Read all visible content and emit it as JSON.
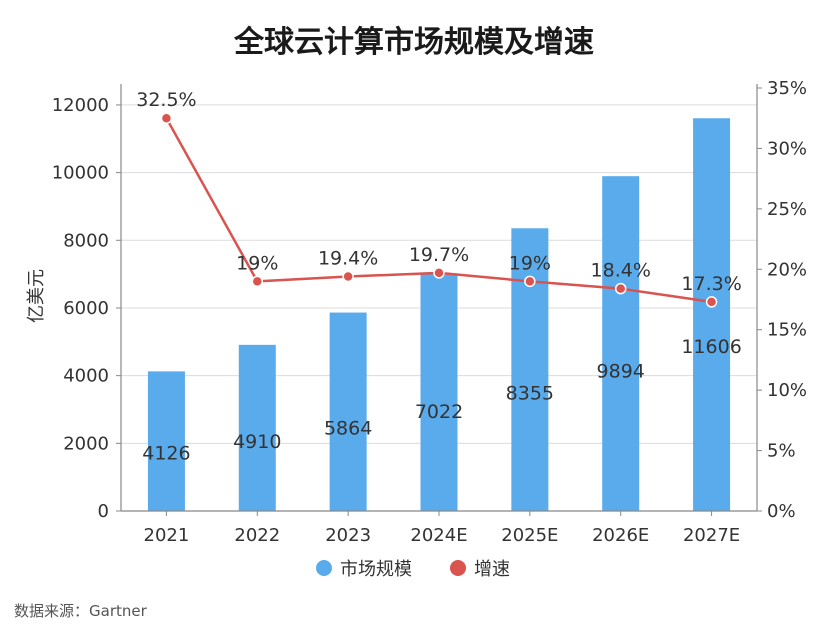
{
  "chart_data": {
    "type": "bar",
    "title": "全球云计算市场规模及增速",
    "categories": [
      "2021",
      "2022",
      "2023",
      "2024E",
      "2025E",
      "2026E",
      "2027E"
    ],
    "ylabel": "亿美元",
    "ylim": [
      0,
      12500
    ],
    "y_ticks": [
      0,
      2000,
      4000,
      6000,
      8000,
      10000,
      12000
    ],
    "y2lim": [
      0,
      35
    ],
    "y2_ticks": [
      "0%",
      "5%",
      "10%",
      "15%",
      "20%",
      "25%",
      "30%",
      "35%"
    ],
    "grid": true,
    "legend_position": "bottom",
    "series": [
      {
        "name": "市场规模",
        "type": "bar",
        "axis": "left",
        "color": "#5aabec",
        "values": [
          4126,
          4910,
          5864,
          7022,
          8355,
          9894,
          11606
        ],
        "labels": [
          "4126",
          "4910",
          "5864",
          "7022",
          "8355",
          "9894",
          "11606"
        ]
      },
      {
        "name": "增速",
        "type": "line",
        "axis": "right",
        "color": "#d9534f",
        "values": [
          32.5,
          19,
          19.4,
          19.7,
          19,
          18.4,
          17.3
        ],
        "labels": [
          "32.5%",
          "19%",
          "19.4%",
          "19.7%",
          "19%",
          "18.4%",
          "17.3%"
        ]
      }
    ],
    "source": "数据来源：Gartner"
  }
}
